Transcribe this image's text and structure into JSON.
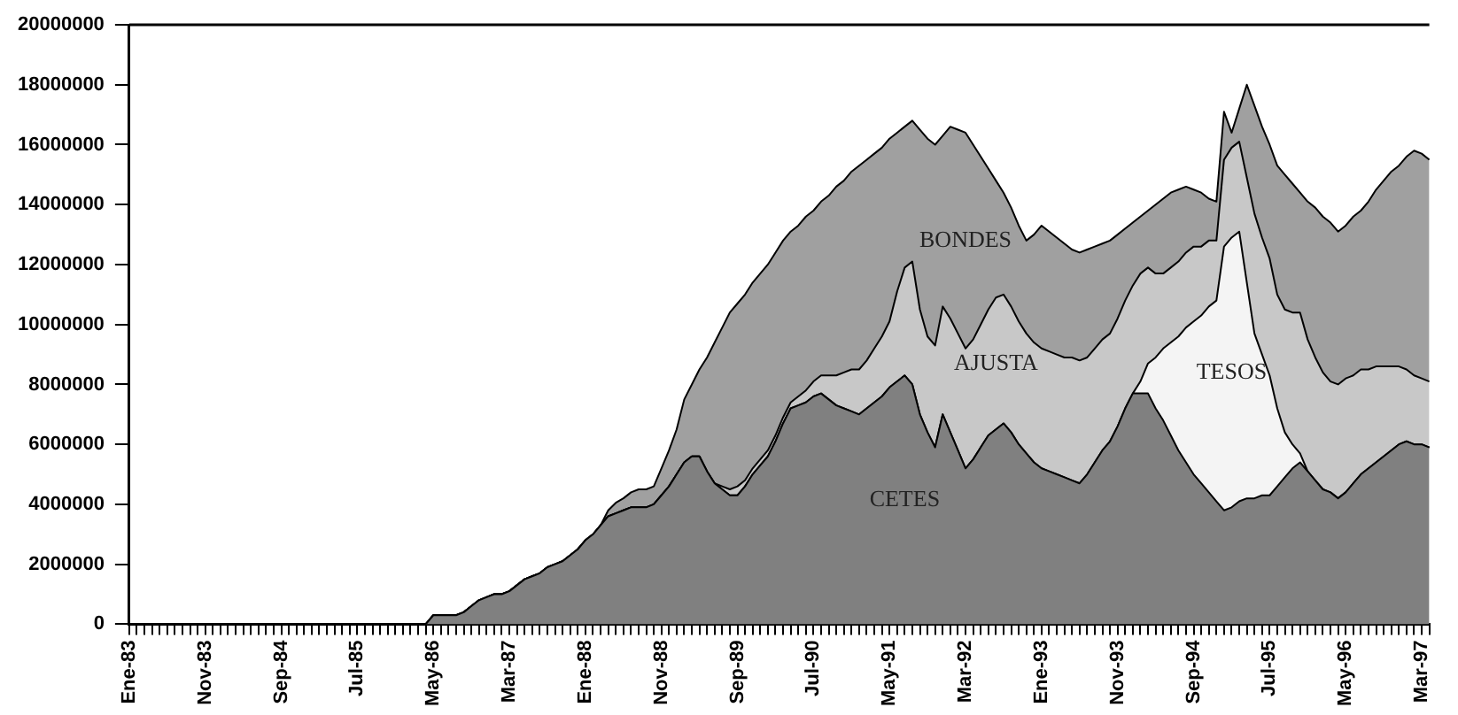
{
  "chart_data": {
    "type": "area",
    "stacked": true,
    "legend": false,
    "grid": false,
    "categories": [
      "Ene-83",
      null,
      null,
      null,
      null,
      null,
      null,
      null,
      null,
      null,
      "Nov-83",
      null,
      null,
      null,
      null,
      null,
      null,
      null,
      null,
      null,
      "Sep-84",
      null,
      null,
      null,
      null,
      null,
      null,
      null,
      null,
      null,
      "Jul-85",
      null,
      null,
      null,
      null,
      null,
      null,
      null,
      null,
      null,
      "May-86",
      null,
      null,
      null,
      null,
      null,
      null,
      null,
      null,
      null,
      "Mar-87",
      null,
      null,
      null,
      null,
      null,
      null,
      null,
      null,
      null,
      "Ene-88",
      null,
      null,
      null,
      null,
      null,
      null,
      null,
      null,
      null,
      "Nov-88",
      null,
      null,
      null,
      null,
      null,
      null,
      null,
      null,
      null,
      "Sep-89",
      null,
      null,
      null,
      null,
      null,
      null,
      null,
      null,
      null,
      "Jul-90",
      null,
      null,
      null,
      null,
      null,
      null,
      null,
      null,
      null,
      "May-91",
      null,
      null,
      null,
      null,
      null,
      null,
      null,
      null,
      null,
      "Mar-92",
      null,
      null,
      null,
      null,
      null,
      null,
      null,
      null,
      null,
      "Ene-93",
      null,
      null,
      null,
      null,
      null,
      null,
      null,
      null,
      null,
      "Nov-93",
      null,
      null,
      null,
      null,
      null,
      null,
      null,
      null,
      null,
      "Sep-94",
      null,
      null,
      null,
      null,
      null,
      null,
      null,
      null,
      null,
      "Jul-95",
      null,
      null,
      null,
      null,
      null,
      null,
      null,
      null,
      null,
      "May-96",
      null,
      null,
      null,
      null,
      null,
      null,
      null,
      null,
      null,
      "Mar-97",
      null
    ],
    "ylim": [
      0,
      20000000
    ],
    "yticks": [
      0,
      2000000,
      4000000,
      6000000,
      8000000,
      10000000,
      12000000,
      14000000,
      16000000,
      18000000,
      20000000
    ],
    "series": [
      {
        "name": "CETES",
        "color": "#808080",
        "values": [
          0,
          0,
          0,
          0,
          0,
          0,
          0,
          0,
          0,
          0,
          0,
          0,
          0,
          0,
          0,
          0,
          0,
          0,
          0,
          0,
          0,
          0,
          0,
          0,
          0,
          0,
          0,
          0,
          0,
          0,
          0,
          0,
          0,
          0,
          0,
          0,
          0,
          0,
          0,
          0,
          300000,
          300000,
          300000,
          300000,
          400000,
          600000,
          800000,
          900000,
          1000000,
          1000000,
          1100000,
          1300000,
          1500000,
          1600000,
          1700000,
          1900000,
          2000000,
          2100000,
          2300000,
          2500000,
          2800000,
          3000000,
          3300000,
          3600000,
          3700000,
          3800000,
          3900000,
          3900000,
          3900000,
          4000000,
          4300000,
          4600000,
          5000000,
          5400000,
          5600000,
          5600000,
          5100000,
          4700000,
          4500000,
          4300000,
          4300000,
          4600000,
          5000000,
          5300000,
          5600000,
          6100000,
          6700000,
          7200000,
          7300000,
          7400000,
          7600000,
          7700000,
          7500000,
          7300000,
          7200000,
          7100000,
          7000000,
          7200000,
          7400000,
          7600000,
          7900000,
          8100000,
          8300000,
          8000000,
          7000000,
          6400000,
          5900000,
          7000000,
          6400000,
          5800000,
          5200000,
          5500000,
          5900000,
          6300000,
          6500000,
          6700000,
          6400000,
          6000000,
          5700000,
          5400000,
          5200000,
          5100000,
          5000000,
          4900000,
          4800000,
          4700000,
          5000000,
          5400000,
          5800000,
          6100000,
          6600000,
          7200000,
          7700000,
          7700000,
          7700000,
          7200000,
          6800000,
          6300000,
          5800000,
          5400000,
          5000000,
          4700000,
          4400000,
          4100000,
          3800000,
          3900000,
          4100000,
          4200000,
          4200000,
          4300000,
          4300000,
          4600000,
          4900000,
          5200000,
          5400000,
          5100000,
          4800000,
          4500000,
          4400000,
          4200000,
          4400000,
          4700000,
          5000000,
          5200000,
          5400000,
          5600000,
          5800000,
          6000000,
          6100000,
          6000000,
          6000000,
          5900000
        ]
      },
      {
        "name": "TESOS",
        "color": "#f4f4f4",
        "values": [
          0,
          0,
          0,
          0,
          0,
          0,
          0,
          0,
          0,
          0,
          0,
          0,
          0,
          0,
          0,
          0,
          0,
          0,
          0,
          0,
          0,
          0,
          0,
          0,
          0,
          0,
          0,
          0,
          0,
          0,
          0,
          0,
          0,
          0,
          0,
          0,
          0,
          0,
          0,
          0,
          0,
          0,
          0,
          0,
          0,
          0,
          0,
          0,
          0,
          0,
          0,
          0,
          0,
          0,
          0,
          0,
          0,
          0,
          0,
          0,
          0,
          0,
          0,
          0,
          0,
          0,
          0,
          0,
          0,
          0,
          0,
          0,
          0,
          0,
          0,
          0,
          0,
          0,
          0,
          0,
          0,
          0,
          0,
          0,
          0,
          0,
          0,
          0,
          0,
          0,
          0,
          0,
          0,
          0,
          0,
          0,
          0,
          0,
          0,
          0,
          0,
          0,
          0,
          0,
          0,
          0,
          0,
          0,
          0,
          0,
          0,
          0,
          0,
          0,
          0,
          0,
          0,
          0,
          0,
          0,
          0,
          0,
          0,
          0,
          0,
          0,
          0,
          0,
          0,
          0,
          0,
          0,
          0,
          400000,
          1000000,
          1700000,
          2400000,
          3100000,
          3800000,
          4500000,
          5100000,
          5600000,
          6200000,
          6700000,
          8800000,
          9000000,
          9000000,
          7200000,
          5500000,
          4700000,
          4000000,
          2600000,
          1500000,
          800000,
          300000,
          0,
          0,
          0,
          0,
          0,
          0,
          0,
          0,
          0,
          0,
          0,
          0,
          0,
          0,
          0,
          0,
          0
        ]
      },
      {
        "name": "AJUSTA",
        "color": "#c8c8c8",
        "values": [
          0,
          0,
          0,
          0,
          0,
          0,
          0,
          0,
          0,
          0,
          0,
          0,
          0,
          0,
          0,
          0,
          0,
          0,
          0,
          0,
          0,
          0,
          0,
          0,
          0,
          0,
          0,
          0,
          0,
          0,
          0,
          0,
          0,
          0,
          0,
          0,
          0,
          0,
          0,
          0,
          0,
          0,
          0,
          0,
          0,
          0,
          0,
          0,
          0,
          0,
          0,
          0,
          0,
          0,
          0,
          0,
          0,
          0,
          0,
          0,
          0,
          0,
          0,
          0,
          0,
          0,
          0,
          0,
          0,
          0,
          0,
          0,
          0,
          0,
          0,
          0,
          0,
          0,
          100000,
          200000,
          300000,
          200000,
          200000,
          200000,
          200000,
          200000,
          200000,
          200000,
          300000,
          400000,
          500000,
          600000,
          800000,
          1000000,
          1200000,
          1400000,
          1500000,
          1600000,
          1800000,
          2000000,
          2200000,
          3000000,
          3600000,
          4100000,
          3500000,
          3200000,
          3400000,
          3600000,
          3800000,
          3900000,
          4000000,
          4000000,
          4100000,
          4200000,
          4400000,
          4300000,
          4200000,
          4100000,
          4000000,
          4000000,
          4000000,
          4000000,
          4000000,
          4000000,
          4100000,
          4100000,
          3900000,
          3800000,
          3700000,
          3600000,
          3600000,
          3600000,
          3600000,
          3600000,
          3200000,
          2800000,
          2500000,
          2500000,
          2500000,
          2500000,
          2500000,
          2300000,
          2200000,
          2000000,
          2900000,
          3000000,
          3000000,
          3500000,
          4000000,
          3900000,
          3900000,
          3800000,
          4100000,
          4400000,
          4700000,
          4400000,
          4100000,
          3900000,
          3700000,
          3800000,
          3800000,
          3600000,
          3500000,
          3300000,
          3200000,
          3000000,
          2800000,
          2600000,
          2400000,
          2300000,
          2200000,
          2200000
        ]
      },
      {
        "name": "BONDES",
        "color": "#a0a0a0",
        "values": [
          0,
          0,
          0,
          0,
          0,
          0,
          0,
          0,
          0,
          0,
          0,
          0,
          0,
          0,
          0,
          0,
          0,
          0,
          0,
          0,
          0,
          0,
          0,
          0,
          0,
          0,
          0,
          0,
          0,
          0,
          0,
          0,
          0,
          0,
          0,
          0,
          0,
          0,
          0,
          0,
          0,
          0,
          0,
          0,
          0,
          0,
          0,
          0,
          0,
          0,
          0,
          0,
          0,
          0,
          0,
          0,
          0,
          0,
          0,
          0,
          0,
          0,
          0,
          200000,
          350000,
          400000,
          500000,
          600000,
          600000,
          600000,
          900000,
          1200000,
          1500000,
          2100000,
          2400000,
          2900000,
          3800000,
          4700000,
          5300000,
          5900000,
          6100000,
          6200000,
          6200000,
          6200000,
          6200000,
          6100000,
          5900000,
          5700000,
          5700000,
          5800000,
          5700000,
          5800000,
          6000000,
          6300000,
          6400000,
          6600000,
          6800000,
          6700000,
          6500000,
          6300000,
          6100000,
          5300000,
          4700000,
          4700000,
          6000000,
          6600000,
          6700000,
          5700000,
          6400000,
          6800000,
          7200000,
          6500000,
          5600000,
          4700000,
          3900000,
          3400000,
          3300000,
          3200000,
          3100000,
          3600000,
          4100000,
          4000000,
          3900000,
          3800000,
          3600000,
          3600000,
          3600000,
          3400000,
          3200000,
          3100000,
          2800000,
          2400000,
          2100000,
          1900000,
          1900000,
          2300000,
          2500000,
          2500000,
          2400000,
          2200000,
          1900000,
          1800000,
          1400000,
          1300000,
          1600000,
          500000,
          1100000,
          3100000,
          3600000,
          3700000,
          3800000,
          4300000,
          4500000,
          4300000,
          4000000,
          4600000,
          5000000,
          5200000,
          5300000,
          5100000,
          5100000,
          5300000,
          5300000,
          5600000,
          5900000,
          6200000,
          6500000,
          6700000,
          7100000,
          7500000,
          7500000,
          7400000
        ]
      }
    ]
  }
}
